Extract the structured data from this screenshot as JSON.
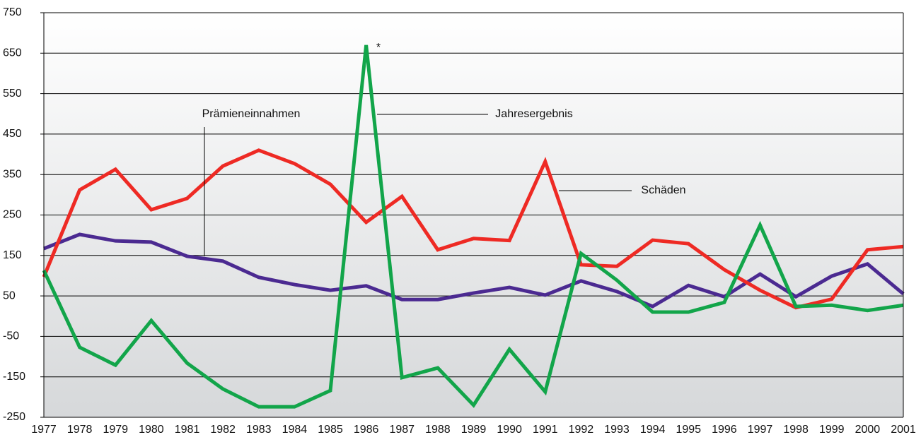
{
  "chart_data": {
    "type": "line",
    "categories": [
      "1977",
      "1978",
      "1979",
      "1980",
      "1981",
      "1982",
      "1983",
      "1984",
      "1985",
      "1986",
      "1987",
      "1988",
      "1989",
      "1990",
      "1991",
      "1992",
      "1993",
      "1994",
      "1995",
      "1996",
      "1997",
      "1998",
      "1999",
      "2000",
      "2001"
    ],
    "series": [
      {
        "name": "Prämieneinnahmen",
        "color": "#4b2a91",
        "values": [
          167,
          202,
          186,
          183,
          148,
          136,
          96,
          78,
          64,
          75,
          41,
          41,
          57,
          71,
          52,
          87,
          61,
          24,
          76,
          48,
          104,
          48,
          99,
          129,
          55
        ]
      },
      {
        "name": "Schäden",
        "color": "#ee2a24",
        "values": [
          97,
          312,
          363,
          263,
          291,
          371,
          410,
          377,
          326,
          232,
          296,
          164,
          192,
          187,
          382,
          127,
          123,
          188,
          179,
          115,
          64,
          21,
          42,
          164,
          172
        ]
      },
      {
        "name": "Jahresergebnis",
        "color": "#12a54a",
        "values": [
          113,
          -77,
          -121,
          -11,
          -116,
          -180,
          -224,
          -224,
          -184,
          670,
          -152,
          -128,
          -220,
          -82,
          -187,
          155,
          89,
          10,
          10,
          34,
          225,
          24,
          27,
          14,
          27
        ]
      }
    ],
    "annotations": [
      "*"
    ],
    "ylim": [
      -250,
      750
    ],
    "yticks": [
      -250,
      -150,
      -50,
      50,
      150,
      250,
      350,
      450,
      550,
      650,
      750
    ],
    "grid": true
  }
}
